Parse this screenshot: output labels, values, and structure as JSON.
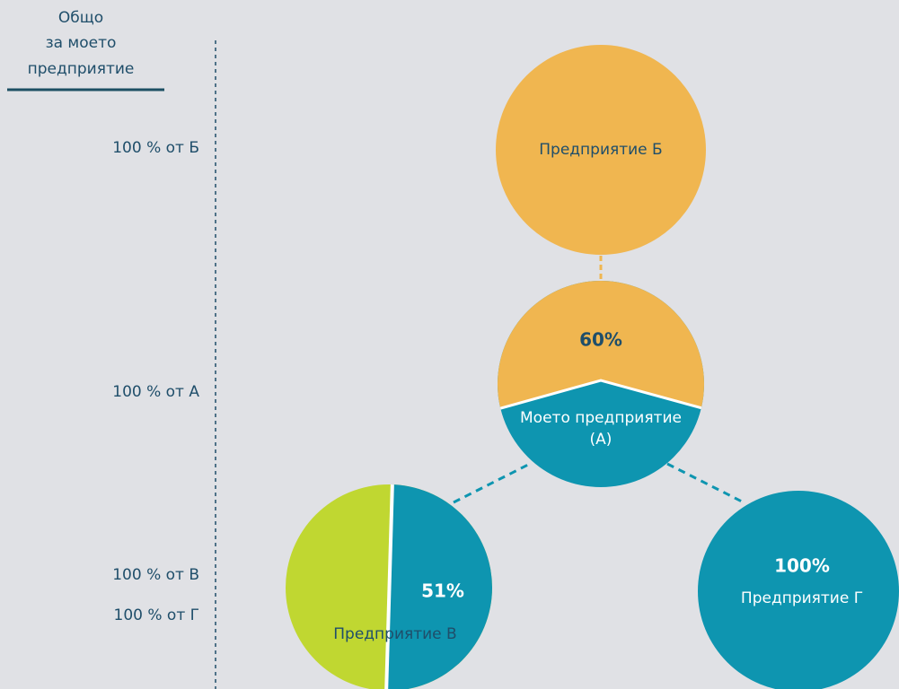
{
  "header": {
    "title_lines": [
      "Общо",
      "за моето",
      "предприятие"
    ]
  },
  "levels": [
    "100 % от Б",
    "100 % от А",
    "100 % от В",
    "100 % от Г"
  ],
  "nodes": [
    {
      "label": "Предприятие Б"
    },
    {
      "percent": "60%",
      "label_lines": [
        "Моето предприятие",
        "(А)"
      ]
    },
    {
      "percent": "51%",
      "label": "Предприятие В"
    },
    {
      "percent": "100%",
      "label": "Предприятие Г"
    }
  ]
}
